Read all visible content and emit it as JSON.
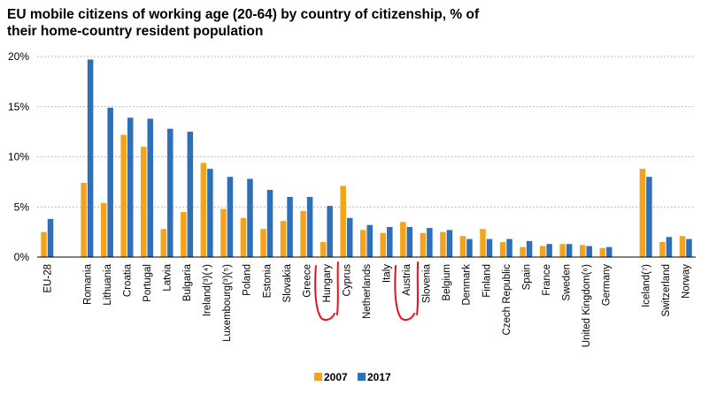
{
  "chart_data": {
    "type": "bar",
    "title": "EU mobile citizens of working age (20-64) by country of citizenship, % of their home-country resident population",
    "xlabel": "",
    "ylabel": "",
    "ylim": [
      0,
      20
    ],
    "yticks": [
      "0%",
      "5%",
      "10%",
      "15%",
      "20%"
    ],
    "grid": true,
    "legend_position": "bottom",
    "categories": [
      "EU-28",
      "",
      "Romania",
      "Lithuania",
      "Croatia",
      "Portugal",
      "Latvia",
      "Bulgaria",
      "Ireland(³)(⁴)",
      "Luxembourg(³)(⁵)",
      "Poland",
      "Estonia",
      "Slovakia",
      "Greece",
      "Hungary",
      "Cyprus",
      "Netherlands",
      "Italy",
      "Austria",
      "Slovenia",
      "Belgium",
      "Denmark",
      "Finland",
      "Czech Republic",
      "Spain",
      "France",
      "Sweden",
      "United Kingdom(⁶)",
      "Germany",
      "",
      "Iceland(⁷)",
      "Switzerland",
      "Norway"
    ],
    "series": [
      {
        "name": "2007",
        "color": "#f5a31a",
        "values": [
          2.5,
          null,
          7.4,
          5.4,
          12.2,
          11.0,
          2.8,
          4.5,
          9.4,
          4.8,
          3.9,
          2.8,
          3.6,
          4.6,
          1.5,
          7.1,
          2.7,
          2.4,
          3.5,
          2.4,
          2.5,
          2.1,
          2.8,
          1.5,
          1.0,
          1.1,
          1.3,
          1.2,
          0.9,
          null,
          8.8,
          1.5,
          2.1
        ]
      },
      {
        "name": "2017",
        "color": "#2e6fb8",
        "values": [
          3.8,
          null,
          19.7,
          14.9,
          13.9,
          13.8,
          12.8,
          12.5,
          8.8,
          8.0,
          7.8,
          6.7,
          6.0,
          6.0,
          5.1,
          3.9,
          3.2,
          3.0,
          3.0,
          2.9,
          2.7,
          1.8,
          1.8,
          1.8,
          1.6,
          1.3,
          1.3,
          1.1,
          1.0,
          null,
          8.0,
          2.0,
          1.8
        ]
      }
    ]
  },
  "annotations": [
    {
      "type": "handwritten-circle",
      "target": "Hungary",
      "color": "#e0141e"
    },
    {
      "type": "handwritten-circle",
      "target": "Austria",
      "color": "#e0141e"
    }
  ]
}
